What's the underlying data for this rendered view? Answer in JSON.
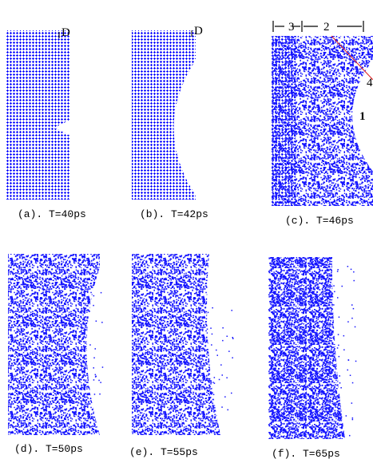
{
  "panels": [
    {
      "label": "(a). T=40ps",
      "marker": "D"
    },
    {
      "label": "(b). T=42ps",
      "marker": "D"
    },
    {
      "label": "(c). T=46ps",
      "annotations": [
        "3",
        "2",
        "4",
        "1"
      ]
    },
    {
      "label": "(d). T=50ps"
    },
    {
      "label": "(e). T=55ps"
    },
    {
      "label": "(f). T=65ps"
    }
  ]
}
